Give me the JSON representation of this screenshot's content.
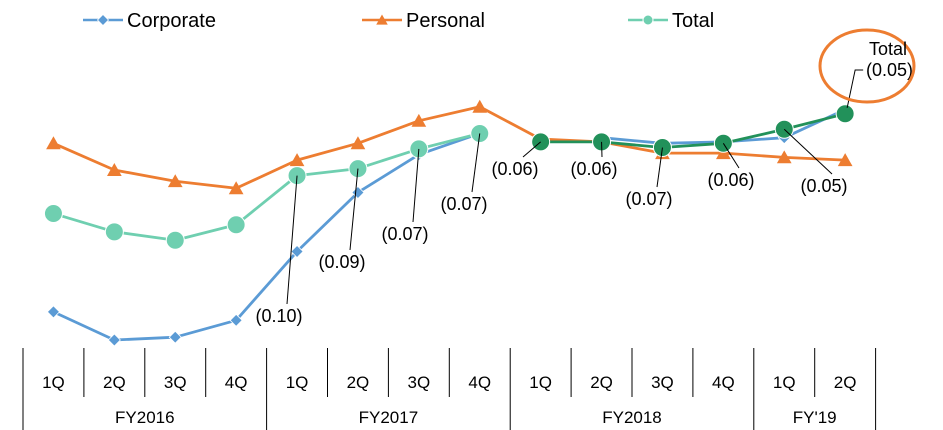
{
  "chart_data": {
    "type": "line",
    "categories": [
      "1Q",
      "2Q",
      "3Q",
      "4Q",
      "1Q",
      "2Q",
      "3Q",
      "4Q",
      "1Q",
      "2Q",
      "3Q",
      "4Q",
      "1Q",
      "2Q"
    ],
    "groups": [
      {
        "label": "FY2016",
        "span": 4
      },
      {
        "label": "FY2017",
        "span": 4
      },
      {
        "label": "FY2018",
        "span": 4
      },
      {
        "label": "FY'19",
        "span": 2
      }
    ],
    "series": [
      {
        "name": "Corporate",
        "color": "#5B9BD5",
        "marker": "diamond",
        "values": [
          0.2,
          0.18,
          0.182,
          0.194,
          0.243,
          0.285,
          0.312,
          0.327,
          null,
          0.324,
          0.32,
          0.321,
          0.324,
          0.344
        ]
      },
      {
        "name": "Personal",
        "color": "#ED7D31",
        "marker": "triangle",
        "values": [
          0.32,
          0.301,
          0.293,
          0.288,
          0.308,
          0.32,
          0.336,
          0.346,
          0.323,
          0.321,
          0.313,
          0.313,
          0.31,
          0.308
        ]
      },
      {
        "name": "Total",
        "color": "#6FCFB0",
        "marker": "circle",
        "values": [
          0.27,
          0.257,
          0.251,
          0.262,
          0.297,
          0.302,
          0.316,
          0.327,
          null,
          null,
          null,
          null,
          null,
          null
        ]
      },
      {
        "name": "Total",
        "color": "#22915A",
        "marker": "circle",
        "legend": false,
        "values": [
          null,
          null,
          null,
          null,
          null,
          null,
          null,
          null,
          0.321,
          0.321,
          0.317,
          0.32,
          0.33,
          0.341
        ]
      }
    ],
    "annotations": [
      {
        "text": "(0.10)",
        "index": 4
      },
      {
        "text": "(0.09)",
        "index": 5
      },
      {
        "text": "(0.07)",
        "index": 6
      },
      {
        "text": "(0.07)",
        "index": 7
      },
      {
        "text": "(0.06)",
        "index": 8
      },
      {
        "text": "(0.06)",
        "index": 9
      },
      {
        "text": "(0.07)",
        "index": 10
      },
      {
        "text": "(0.06)",
        "index": 11
      },
      {
        "text": "(0.05)",
        "index": 12
      },
      {
        "text": "(0.05)",
        "index": 13
      }
    ],
    "callout": {
      "title": "Total",
      "color": "#ED7D31"
    },
    "legend": {
      "position": "top"
    },
    "grid": false
  }
}
